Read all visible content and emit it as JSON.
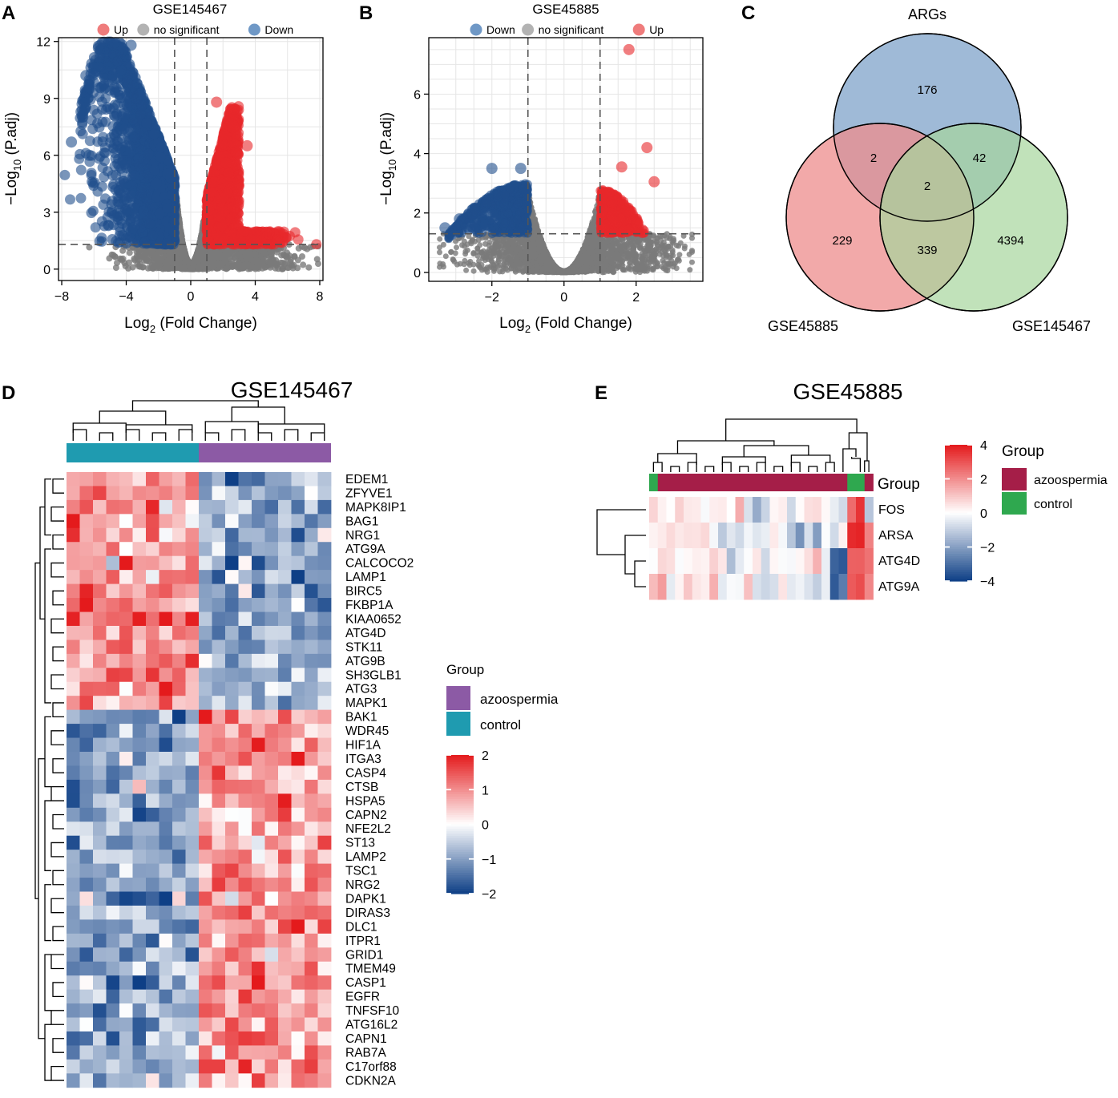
{
  "panels": {
    "A": {
      "letter": "A"
    },
    "B": {
      "letter": "B"
    },
    "C": {
      "letter": "C"
    },
    "D": {
      "letter": "D"
    },
    "E": {
      "letter": "E"
    }
  },
  "colors": {
    "up": "#e8282b",
    "down": "#1f4e8c",
    "ns": "#7a7a7a",
    "legend_up": "#ef7c7c",
    "legend_down": "#6f98c6",
    "legend_ns": "#b3b3b3",
    "venn_args": "#8eaed0",
    "venn_gse45885": "#ee8c8c",
    "venn_gse145467": "#a7d69c",
    "heat_high": "#e41a1c",
    "heat_mid": "#ffffff",
    "heat_low": "#0e3f86",
    "azoospermia_D": "#8c5aa5",
    "control_D": "#1f9bb0",
    "azoospermia_E": "#a51e48",
    "control_E": "#2fa84f"
  },
  "chart_data": [
    {
      "id": "A",
      "type": "scatter",
      "title": "GSE145467",
      "xlabel_main": "Log",
      "xlabel_sub": "2",
      "xlabel_rest": " (Fold Change)",
      "ylabel_main": "−Log",
      "ylabel_sub": "10",
      "ylabel_rest": " (P.adj)",
      "xlim": [
        -8.2,
        8.2
      ],
      "ylim": [
        -0.6,
        12.2
      ],
      "xticks": [
        -8,
        -4,
        0,
        4,
        8
      ],
      "xtick_labels": [
        "−8",
        "−4",
        "0",
        "4",
        "8"
      ],
      "yticks": [
        0,
        3,
        6,
        9,
        12
      ],
      "ytick_labels": [
        "0",
        "3",
        "6",
        "9",
        "12"
      ],
      "vlines": [
        -1,
        1
      ],
      "hline": 1.3,
      "legend": [
        {
          "key": "up",
          "label": "Up"
        },
        {
          "key": "ns",
          "label": "no significant"
        },
        {
          "key": "down",
          "label": "Down"
        }
      ],
      "outliers": [
        {
          "x": -7.4,
          "y": 6.7,
          "g": "down"
        },
        {
          "x": -6.8,
          "y": 8.3,
          "g": "down"
        },
        {
          "x": -6.5,
          "y": 10.2,
          "g": "down"
        },
        {
          "x": -6.0,
          "y": 10.6,
          "g": "down"
        },
        {
          "x": -4.8,
          "y": 11.8,
          "g": "down"
        },
        {
          "x": -4.2,
          "y": 11.6,
          "g": "down"
        },
        {
          "x": -3.7,
          "y": 11.8,
          "g": "down"
        },
        {
          "x": -6.3,
          "y": 6.0,
          "g": "down"
        },
        {
          "x": -5.1,
          "y": 2.3,
          "g": "down"
        },
        {
          "x": 3.5,
          "y": 6.5,
          "g": "up"
        },
        {
          "x": 2.6,
          "y": 6.7,
          "g": "up"
        },
        {
          "x": 1.6,
          "y": 8.8,
          "g": "up"
        },
        {
          "x": 2.2,
          "y": 5.6,
          "g": "up"
        }
      ]
    },
    {
      "id": "B",
      "type": "scatter",
      "title": "GSE45885",
      "xlabel_main": "Log",
      "xlabel_sub": "2",
      "xlabel_rest": " (Fold Change)",
      "ylabel_main": "−Log",
      "ylabel_sub": "10",
      "ylabel_rest": " (P.adj)",
      "xlim": [
        -3.75,
        3.85
      ],
      "ylim": [
        -0.3,
        7.9
      ],
      "xticks": [
        -2,
        0,
        2
      ],
      "xtick_labels": [
        "−2",
        "0",
        "2"
      ],
      "yticks": [
        0,
        2,
        4,
        6
      ],
      "ytick_labels": [
        "0",
        "2",
        "4",
        "6"
      ],
      "vlines": [
        -1,
        1
      ],
      "hline": 1.3,
      "legend": [
        {
          "key": "down",
          "label": "Down"
        },
        {
          "key": "ns",
          "label": "no significant"
        },
        {
          "key": "up",
          "label": "Up"
        }
      ],
      "outliers": [
        {
          "x": 1.8,
          "y": 7.5,
          "g": "up"
        },
        {
          "x": 2.3,
          "y": 4.2,
          "g": "up"
        },
        {
          "x": 2.5,
          "y": 3.05,
          "g": "up"
        },
        {
          "x": 1.6,
          "y": 3.55,
          "g": "up"
        },
        {
          "x": -2.0,
          "y": 3.5,
          "g": "down"
        },
        {
          "x": -1.2,
          "y": 3.5,
          "g": "down"
        },
        {
          "x": -3.3,
          "y": 1.5,
          "g": "down"
        },
        {
          "x": -2.9,
          "y": 1.8,
          "g": "down"
        }
      ]
    },
    {
      "id": "C",
      "type": "venn",
      "sets": [
        {
          "name": "ARGs",
          "key": "venn_args"
        },
        {
          "name": "GSE45885",
          "key": "venn_gse45885"
        },
        {
          "name": "GSE145467",
          "key": "venn_gse145467"
        }
      ],
      "regions": [
        {
          "sets": [
            "ARGs"
          ],
          "value": "176"
        },
        {
          "sets": [
            "GSE45885"
          ],
          "value": "229"
        },
        {
          "sets": [
            "GSE145467"
          ],
          "value": "4394"
        },
        {
          "sets": [
            "ARGs",
            "GSE45885"
          ],
          "value": "2"
        },
        {
          "sets": [
            "ARGs",
            "GSE145467"
          ],
          "value": "42"
        },
        {
          "sets": [
            "GSE45885",
            "GSE145467"
          ],
          "value": "339"
        },
        {
          "sets": [
            "ARGs",
            "GSE45885",
            "GSE145467"
          ],
          "value": "2"
        }
      ]
    },
    {
      "id": "D",
      "type": "heatmap",
      "title": "GSE145467",
      "genes": [
        "EDEM1",
        "ZFYVE1",
        "MAPK8IP1",
        "BAG1",
        "NRG1",
        "ATG9A",
        "CALCOCO2",
        "LAMP1",
        "BIRC5",
        "FKBP1A",
        "KIAA0652",
        "ATG4D",
        "STK11",
        "ATG9B",
        "SH3GLB1",
        "ATG3",
        "MAPK1",
        "BAK1",
        "WDR45",
        "HIF1A",
        "ITGA3",
        "CASP4",
        "CTSB",
        "HSPA5",
        "CAPN2",
        "NFE2L2",
        "ST13",
        "LAMP2",
        "TSC1",
        "NRG2",
        "DAPK1",
        "DIRAS3",
        "DLC1",
        "ITPR1",
        "GRID1",
        "TMEM49",
        "CASP1",
        "EGFR",
        "TNFSF10",
        "ATG16L2",
        "CAPN1",
        "RAB7A",
        "C17orf88",
        "CDKN2A"
      ],
      "n_control": 10,
      "n_azoospermia": 10,
      "group_legend_title": "Group",
      "group_legend": [
        {
          "key": "azoospermia_D",
          "label": "azoospermia"
        },
        {
          "key": "control_D",
          "label": "control"
        }
      ],
      "color_range": [
        -2,
        2
      ],
      "color_ticks": [
        "2",
        "1",
        "0",
        "−1",
        "−2"
      ]
    },
    {
      "id": "E",
      "type": "heatmap",
      "title": "GSE45885",
      "genes": [
        "FOS",
        "ARSA",
        "ATG4D",
        "ATG9A"
      ],
      "group_row_label": "Group",
      "group_legend_title": "Group",
      "group_legend": [
        {
          "key": "azoospermia_E",
          "label": "azoospermia"
        },
        {
          "key": "control_E",
          "label": "control"
        }
      ],
      "color_range": [
        -4,
        4
      ],
      "color_ticks": [
        "4",
        "2",
        "0",
        "−2",
        "−4"
      ]
    }
  ]
}
